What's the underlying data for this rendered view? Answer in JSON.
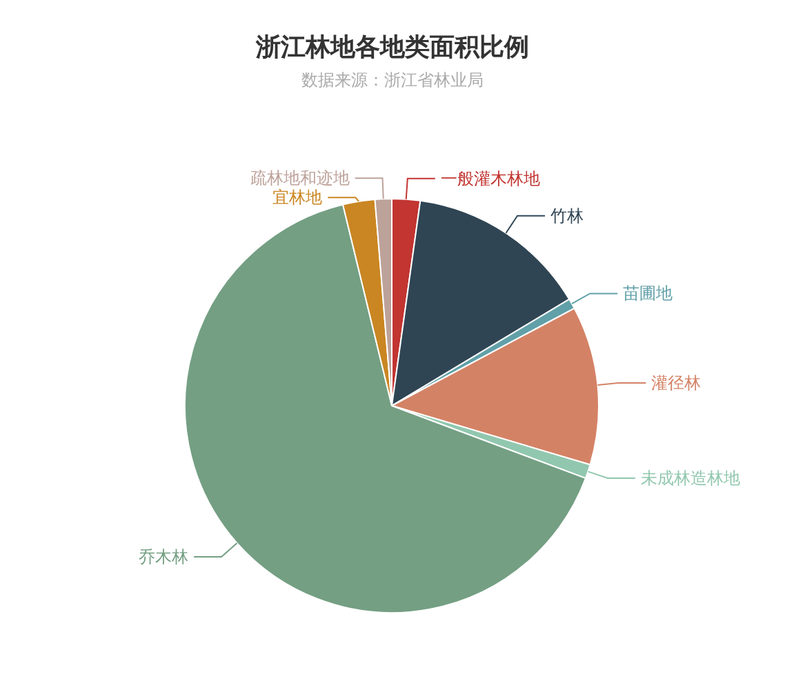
{
  "chart_data": {
    "type": "pie",
    "title": "浙江林地各地类面积比例",
    "subtitle": "数据来源：浙江省林业局",
    "categories": [
      "一般灌木林地",
      "竹林",
      "苗圃地",
      "灌径林",
      "未成林造林地",
      "乔木林",
      "宜林地",
      "疏林地和迹地"
    ],
    "values": [
      2.2,
      14.2,
      0.8,
      12.4,
      1.1,
      65.5,
      2.5,
      1.3
    ],
    "colors": [
      "#c23531",
      "#2f4554",
      "#61a0a8",
      "#d48265",
      "#91c7ae",
      "#749f83",
      "#ca8622",
      "#bda29a"
    ],
    "legend": false
  }
}
